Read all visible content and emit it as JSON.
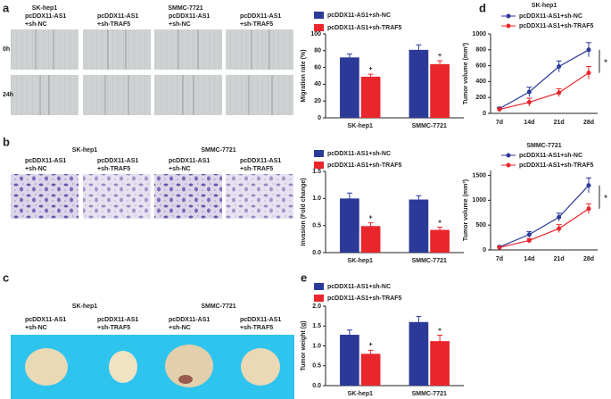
{
  "panel_labels": [
    "a",
    "b",
    "c",
    "d",
    "e"
  ],
  "migration_images": {
    "cell_lines": [
      "SK-hep1",
      "SMMC-7721"
    ],
    "groups": [
      [
        "pcDDX11-AS1",
        "+sh-NC"
      ],
      [
        "pcDDX11-AS1",
        "+sh-TRAF5"
      ],
      [
        "pcDDX11-AS1",
        "+sh-NC"
      ],
      [
        "pcDDX11-AS1",
        "+sh-TRAF5"
      ]
    ],
    "rows": [
      "0h",
      "24h"
    ]
  },
  "invasion_images": {
    "cell_lines": [
      "SK-hep1",
      "SMMC-7721"
    ],
    "groups": [
      [
        "pcDDX11-AS1",
        "+sh-NC"
      ],
      [
        "pcDDX11-AS1",
        "+sh-TRAF5"
      ],
      [
        "pcDDX11-AS1",
        "+sh-NC"
      ],
      [
        "pcDDX11-AS1",
        "+sh-TRAF5"
      ]
    ]
  },
  "tumor_images": {
    "cell_lines": [
      "SK-hep1",
      "SMMC-7721"
    ],
    "groups": [
      [
        "pcDDX11-AS1",
        "+sh-NC"
      ],
      [
        "pcDDX11-AS1",
        "+sh-TRAF5"
      ],
      [
        "pcDDX11-AS1",
        "+sh-NC"
      ],
      [
        "pcDDX11-AS1",
        "+sh-TRAF5"
      ]
    ]
  },
  "chart_data": [
    {
      "type": "bar",
      "ylabel": "Migration rate (%)",
      "categories": [
        "SK-hep1",
        "SMMC-7721"
      ],
      "series": [
        {
          "name": "pcDDX11-AS1+sh-NC",
          "color": "#2b3a98",
          "values": [
            72,
            81
          ],
          "errors": [
            4,
            6
          ]
        },
        {
          "name": "pcDDX11-AS1+sh-TRAF5",
          "color": "#e8262b",
          "values": [
            49,
            64
          ],
          "errors": [
            3,
            4
          ]
        }
      ],
      "ylim": [
        0,
        100
      ],
      "yticks": [
        0,
        20,
        40,
        60,
        80,
        100
      ],
      "significance": "+"
    },
    {
      "type": "bar",
      "ylabel": "Invasion (Fold change)",
      "categories": [
        "SK-hep1",
        "SMMC-7721"
      ],
      "series": [
        {
          "name": "pcDDX11-AS1+sh-NC",
          "color": "#2b3a98",
          "values": [
            1.0,
            0.98
          ],
          "errors": [
            0.1,
            0.07
          ]
        },
        {
          "name": "pcDDX11-AS1+sh-TRAF5",
          "color": "#e8262b",
          "values": [
            0.49,
            0.42
          ],
          "errors": [
            0.06,
            0.05
          ]
        }
      ],
      "ylim": [
        0,
        1.5
      ],
      "yticks": [
        {
          "value": 0,
          "label": "0.0"
        },
        0.5,
        {
          "value": 1,
          "label": "1.0"
        },
        1.5
      ],
      "significance": "+"
    },
    {
      "type": "bar",
      "ylabel": "Tumor weight (g)",
      "categories": [
        "SK-hep1",
        "SMMC-7721"
      ],
      "series": [
        {
          "name": "pcDDX11-AS1+sh-NC",
          "color": "#2b3a98",
          "values": [
            1.28,
            1.6
          ],
          "errors": [
            0.12,
            0.14
          ]
        },
        {
          "name": "pcDDX11-AS1+sh-TRAF5",
          "color": "#e8262b",
          "values": [
            0.8,
            1.12
          ],
          "errors": [
            0.09,
            0.15
          ]
        }
      ],
      "ylim": [
        0,
        2
      ],
      "yticks": [
        {
          "value": 0,
          "label": "0.0"
        },
        0.5,
        {
          "value": 1,
          "label": "1.0"
        },
        1.5,
        {
          "value": 2,
          "label": "2.0"
        }
      ],
      "significance": "+"
    },
    {
      "type": "line",
      "title": "SK-hep1",
      "ylabel": "Tumor volume (mm³)",
      "categories": [
        "7d",
        "14d",
        "21d",
        "28d"
      ],
      "series": [
        {
          "name": "pcDDX11-AS1+sh-NC",
          "color": "#2b3a98",
          "values": [
            60,
            270,
            590,
            800
          ],
          "errors": [
            15,
            60,
            70,
            90
          ]
        },
        {
          "name": "pcDDX11-AS1+sh-TRAF5",
          "color": "#e8262b",
          "values": [
            50,
            140,
            260,
            510
          ],
          "errors": [
            10,
            50,
            50,
            80
          ]
        }
      ],
      "ylim": [
        0,
        1000
      ],
      "yticks": [
        0,
        200,
        400,
        600,
        800,
        1000
      ],
      "significance": "+"
    },
    {
      "type": "line",
      "title": "SMMC-7721",
      "ylabel": "Tumor volume (mm³)",
      "categories": [
        "7d",
        "14d",
        "21d",
        "28d"
      ],
      "series": [
        {
          "name": "pcDDX11-AS1+sh-NC",
          "color": "#2b3a98",
          "values": [
            60,
            310,
            660,
            1300
          ],
          "errors": [
            15,
            60,
            80,
            150
          ]
        },
        {
          "name": "pcDDX11-AS1+sh-TRAF5",
          "color": "#e8262b",
          "values": [
            50,
            190,
            430,
            830
          ],
          "errors": [
            10,
            40,
            80,
            100
          ]
        }
      ],
      "ylim": [
        0,
        1600
      ],
      "yticks": [
        0,
        500,
        1000,
        1500
      ],
      "significance": "+"
    }
  ]
}
